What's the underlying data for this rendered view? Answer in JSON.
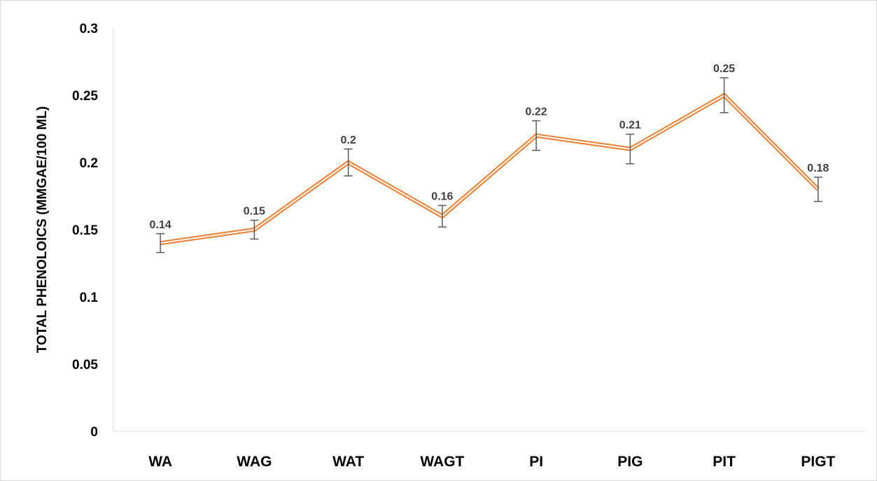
{
  "chart_data": {
    "type": "line",
    "title": "",
    "xlabel": "",
    "ylabel": "TOTAL PHENOLOICS (MMGAE/100 ML)",
    "categories": [
      "WA",
      "WAG",
      "WAT",
      "WAGT",
      "PI",
      "PIG",
      "PIT",
      "PIGT"
    ],
    "series": [
      {
        "values": [
          0.14,
          0.15,
          0.2,
          0.16,
          0.22,
          0.21,
          0.25,
          0.18
        ],
        "data_labels": [
          "0.14",
          "0.15",
          "0.2",
          "0.16",
          "0.22",
          "0.21",
          "0.25",
          "0.18"
        ],
        "error": [
          0.007,
          0.007,
          0.01,
          0.008,
          0.011,
          0.011,
          0.013,
          0.009
        ],
        "color": "#ED7D31"
      }
    ],
    "ylim": [
      0,
      0.3
    ],
    "yticks": [
      "0",
      "0.05",
      "0.1",
      "0.15",
      "0.2",
      "0.25",
      "0.3"
    ],
    "grid": false,
    "legend": "none"
  }
}
